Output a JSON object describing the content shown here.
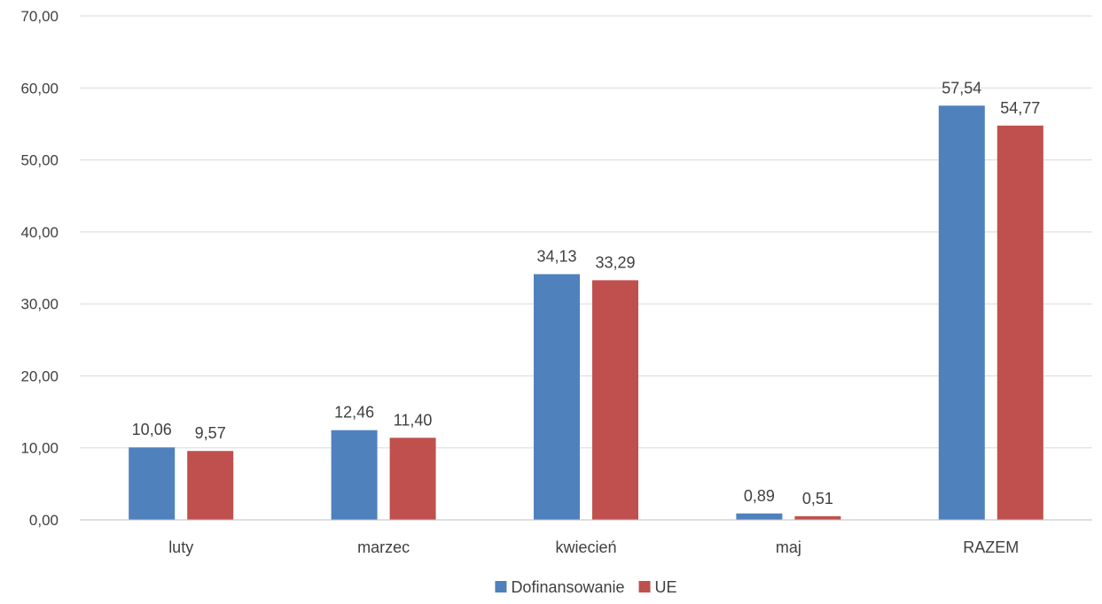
{
  "chart_data": {
    "type": "bar",
    "categories": [
      "luty",
      "marzec",
      "kwiecień",
      "maj",
      "RAZEM"
    ],
    "series": [
      {
        "name": "Dofinansowanie",
        "color": "#4f81bd",
        "values": [
          10.06,
          12.46,
          34.13,
          0.89,
          57.54
        ],
        "labels": [
          "10,06",
          "12,46",
          "34,13",
          "0,89",
          "57,54"
        ]
      },
      {
        "name": "UE",
        "color": "#c0504d",
        "values": [
          9.57,
          11.4,
          33.29,
          0.51,
          54.77
        ],
        "labels": [
          "9,57",
          "11,40",
          "33,29",
          "0,51",
          "54,77"
        ]
      }
    ],
    "ylim": [
      0,
      70
    ],
    "yticks": [
      0,
      10,
      20,
      30,
      40,
      50,
      60,
      70
    ],
    "ytick_labels": [
      "0,00",
      "10,00",
      "20,00",
      "30,00",
      "40,00",
      "50,00",
      "60,00",
      "70,00"
    ],
    "grid": true,
    "legend": "bottom"
  }
}
